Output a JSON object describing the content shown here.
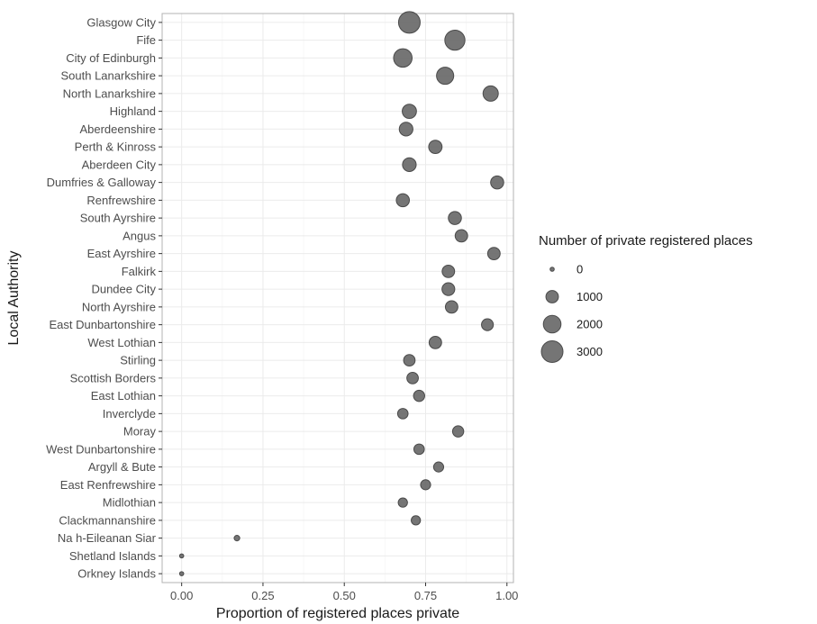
{
  "chart_data": {
    "type": "scatter",
    "xlabel": "Proportion of registered places private",
    "ylabel": "Local Authority",
    "xlim": [
      -0.06,
      1.02
    ],
    "x_ticks": [
      0.0,
      0.25,
      0.5,
      0.75,
      1.0
    ],
    "x_tick_labels": [
      "0.00",
      "0.25",
      "0.50",
      "0.75",
      "1.00"
    ],
    "grid": true,
    "legend_position": "right",
    "size_legend": {
      "title": "Number of private registered places",
      "values": [
        0,
        1000,
        2000,
        3000
      ],
      "labels": [
        "0",
        "1000",
        "2000",
        "3000"
      ]
    },
    "point_color": "#666666",
    "categories": [
      "Glasgow City",
      "Fife",
      "City of Edinburgh",
      "South Lanarkshire",
      "North Lanarkshire",
      "Highland",
      "Aberdeenshire",
      "Perth & Kinross",
      "Aberdeen City",
      "Dumfries & Galloway",
      "Renfrewshire",
      "South Ayrshire",
      "Angus",
      "East Ayrshire",
      "Falkirk",
      "Dundee City",
      "North Ayrshire",
      "East Dunbartonshire",
      "West Lothian",
      "Stirling",
      "Scottish Borders",
      "East Lothian",
      "Inverclyde",
      "Moray",
      "West Dunbartonshire",
      "Argyll & Bute",
      "East Renfrewshire",
      "Midlothian",
      "Clackmannanshire",
      "Na h-Eileanan Siar",
      "Shetland Islands",
      "Orkney Islands"
    ],
    "x": [
      0.7,
      0.84,
      0.68,
      0.81,
      0.95,
      0.7,
      0.69,
      0.78,
      0.7,
      0.97,
      0.68,
      0.84,
      0.86,
      0.96,
      0.82,
      0.82,
      0.83,
      0.94,
      0.78,
      0.7,
      0.71,
      0.73,
      0.68,
      0.85,
      0.73,
      0.79,
      0.75,
      0.68,
      0.72,
      0.17,
      0.0,
      0.0
    ],
    "size": [
      3000,
      2600,
      2200,
      1900,
      1500,
      1300,
      1200,
      1150,
      1200,
      1100,
      1100,
      1100,
      1000,
      1000,
      1000,
      1050,
      1000,
      900,
      1000,
      850,
      850,
      800,
      700,
      800,
      700,
      650,
      650,
      550,
      550,
      200,
      50,
      50
    ]
  }
}
